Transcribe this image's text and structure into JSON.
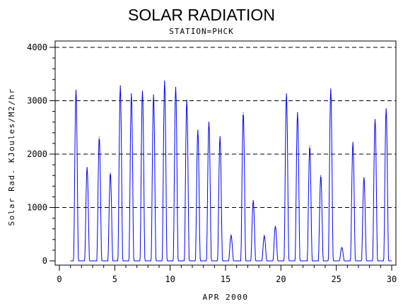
{
  "chart_data": {
    "type": "line",
    "title": "SOLAR RADIATION",
    "subtitle": "STATION=PHCK",
    "xlabel": "APR 2000",
    "ylabel": "Solar Rad. KJoules/M2/hr",
    "xlim": [
      0,
      30
    ],
    "ylim": [
      0,
      4000
    ],
    "x_ticks": [
      "0",
      "5",
      "10",
      "15",
      "20",
      "25",
      "30"
    ],
    "y_ticks": [
      "0",
      "1000",
      "2000",
      "3000",
      "4000"
    ],
    "grid": "horizontal dashed at 1000, 2000, 3000, 4000",
    "series_color": "#0000ff",
    "daily_peaks": [
      {
        "day": 1.5,
        "value": 3200
      },
      {
        "day": 2.5,
        "value": 1750
      },
      {
        "day": 3.6,
        "value": 2320
      },
      {
        "day": 4.6,
        "value": 1650
      },
      {
        "day": 5.5,
        "value": 3280
      },
      {
        "day": 6.5,
        "value": 3130
      },
      {
        "day": 7.5,
        "value": 3180
      },
      {
        "day": 8.5,
        "value": 3110
      },
      {
        "day": 9.5,
        "value": 3370
      },
      {
        "day": 10.5,
        "value": 3250
      },
      {
        "day": 11.5,
        "value": 3010
      },
      {
        "day": 12.5,
        "value": 2450
      },
      {
        "day": 13.5,
        "value": 2600
      },
      {
        "day": 14.5,
        "value": 2330
      },
      {
        "day": 15.5,
        "value": 480
      },
      {
        "day": 16.6,
        "value": 2780
      },
      {
        "day": 17.5,
        "value": 1130
      },
      {
        "day": 18.5,
        "value": 470
      },
      {
        "day": 19.5,
        "value": 650
      },
      {
        "day": 20.5,
        "value": 3130
      },
      {
        "day": 21.5,
        "value": 2780
      },
      {
        "day": 22.6,
        "value": 2150
      },
      {
        "day": 23.6,
        "value": 1600
      },
      {
        "day": 24.5,
        "value": 3220
      },
      {
        "day": 25.5,
        "value": 250
      },
      {
        "day": 26.5,
        "value": 2220
      },
      {
        "day": 27.5,
        "value": 1560
      },
      {
        "day": 28.5,
        "value": 2650
      },
      {
        "day": 29.5,
        "value": 2850
      }
    ]
  }
}
